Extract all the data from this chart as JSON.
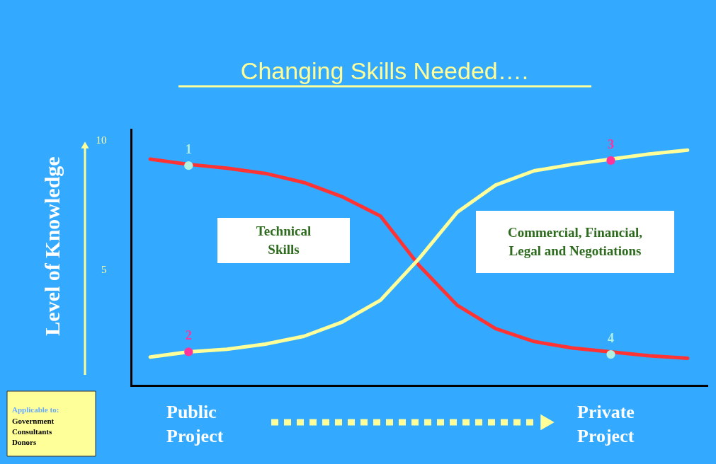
{
  "chart_data": {
    "type": "line",
    "title": "Changing Skills Needed….",
    "ylabel": "Level of Knowledge",
    "categories": [
      null,
      null,
      null,
      null,
      null,
      null,
      null,
      null,
      null,
      null,
      null,
      null,
      null,
      null,
      null
    ],
    "ylim": [
      0.5,
      10.4
    ],
    "yticks": [
      5,
      10
    ],
    "tick_labels": "y",
    "grid": false,
    "marker": "none",
    "line_style": "solid",
    "series": [
      {
        "name": "Technical Skills",
        "color": "#ff3333",
        "values": [
          9.25,
          9.05,
          8.9,
          8.7,
          8.35,
          7.8,
          7.05,
          5.15,
          3.6,
          2.7,
          2.2,
          1.95,
          1.8,
          1.65,
          1.55
        ]
      },
      {
        "name": "Commercial, Financial, Legal and Negotiations",
        "color": "#ffff99",
        "values": [
          1.6,
          1.8,
          1.9,
          2.1,
          2.4,
          2.95,
          3.8,
          5.4,
          7.2,
          8.25,
          8.8,
          9.05,
          9.25,
          9.45,
          9.6
        ]
      },
      {
        "type": "scatter",
        "marker": "circle",
        "color": "#b3f0e0",
        "values": [
          null,
          9.0,
          null,
          null,
          null,
          null,
          null,
          null,
          null,
          null,
          null,
          null,
          1.7,
          null,
          null
        ]
      },
      {
        "type": "scatter",
        "marker": "circle",
        "color": "#ff3399",
        "values": [
          null,
          1.8,
          null,
          null,
          null,
          null,
          null,
          null,
          null,
          null,
          null,
          null,
          9.2,
          null,
          null
        ]
      }
    ],
    "annotations": [
      "Public Project",
      "Private Project",
      "Applicable to:",
      "Government",
      "Consultants",
      "Donors",
      {
        "text": "1",
        "y": 9.0
      },
      {
        "text": "2",
        "y": 1.8
      },
      {
        "text": "3",
        "y": 9.2
      },
      {
        "text": "4",
        "y": 1.7
      }
    ]
  }
}
